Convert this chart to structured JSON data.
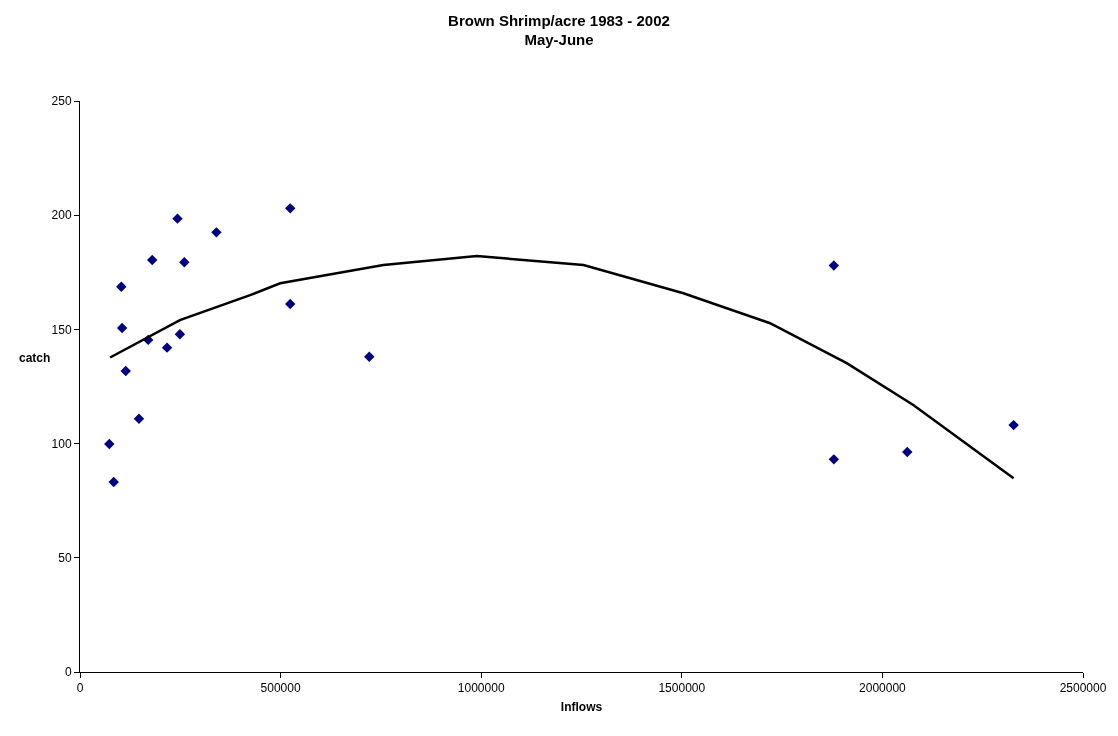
{
  "chart_data": {
    "type": "scatter",
    "title": "Brown Shrimp/acre 1983 - 2002\nMay-June",
    "xlabel": "Inflows",
    "ylabel": "catch",
    "xlim": [
      0,
      2500000
    ],
    "xticks": [
      0,
      500000,
      1000000,
      1500000,
      2000000,
      2500000
    ],
    "ylim": [
      0,
      250
    ],
    "yticks": [
      0,
      50,
      100,
      150,
      200,
      250
    ],
    "grid": false,
    "marker": "diamond",
    "series": [
      {
        "type": "scatter",
        "color": "#000080",
        "x": [
          73000,
          84000,
          103000,
          105000,
          114000,
          147000,
          170000,
          180000,
          217000,
          243000,
          249000,
          260000,
          340000,
          524000,
          524000,
          721000,
          1879000,
          1879000,
          2062000,
          2327000
        ],
        "values": [
          99.8,
          83.2,
          168.7,
          150.6,
          131.8,
          110.9,
          145.4,
          180.4,
          142,
          198.5,
          147.9,
          179.4,
          192.5,
          203,
          161.1,
          138,
          178,
          93.1,
          96.3,
          108.1
        ]
      },
      {
        "type": "line",
        "color": "#000000",
        "line_style": "solid",
        "marker": "none",
        "x": [
          75000,
          249000,
          424000,
          499000,
          756000,
          989000,
          1255000,
          1504000,
          1720000,
          1911000,
          2077000,
          2327000
        ],
        "values": [
          137.7,
          154.1,
          165,
          170.2,
          178.2,
          182.1,
          178.2,
          165.8,
          152.7,
          135.2,
          116.9,
          84.8
        ]
      }
    ]
  }
}
